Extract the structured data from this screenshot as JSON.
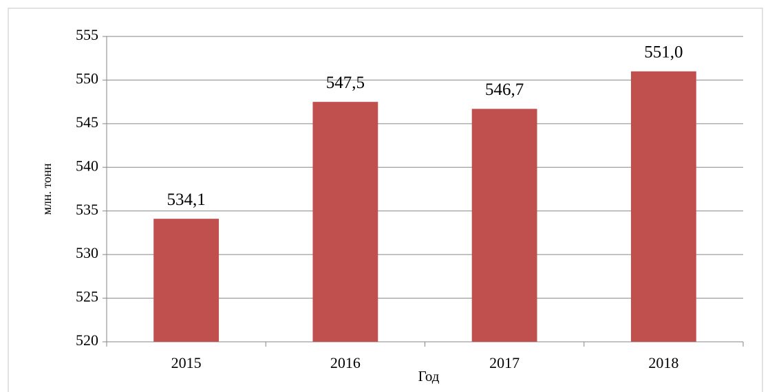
{
  "chart_data": {
    "type": "bar",
    "categories": [
      "2015",
      "2016",
      "2017",
      "2018"
    ],
    "values": [
      534.1,
      547.5,
      546.7,
      551.0
    ],
    "value_labels": [
      "534,1",
      "547,5",
      "546,7",
      "551,0"
    ],
    "color": "#c0504d",
    "x_label": "Год",
    "y_label": "млн. тонн",
    "ylim": [
      520,
      555
    ],
    "yticks": [
      520,
      525,
      530,
      535,
      540,
      545,
      550,
      555
    ],
    "grid": true
  }
}
